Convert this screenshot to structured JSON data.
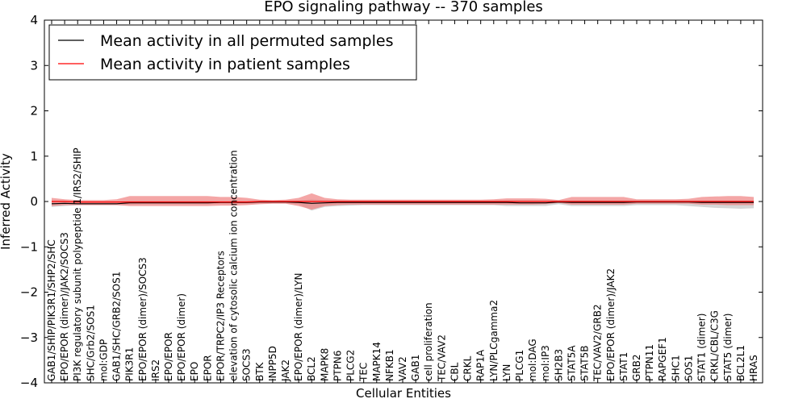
{
  "chart_data": {
    "type": "line",
    "title": "EPO signaling pathway -- 370 samples",
    "xlabel": "Cellular Entities",
    "ylabel": "Inferred Activity",
    "ylim": [
      -4,
      4
    ],
    "yticks": [
      -4,
      -3,
      -2,
      -1,
      0,
      1,
      2,
      3,
      4
    ],
    "ytick_labels": [
      "−4",
      "−3",
      "−2",
      "−1",
      "0",
      "1",
      "2",
      "3",
      "4"
    ],
    "grid": false,
    "legend_position": "top-left",
    "categories": [
      "GAB1/SHIP/PIK3R1/SHP2/SHC",
      "EPO/EPOR (dimer)/JAK2/SOCS3",
      "PI3K regulatory subunit polypeptide 1/IRS2/SHIP",
      "SHC/Grb2/SOS1",
      "mol:GDP",
      "GAB1/SHC/GRB2/SOS1",
      "PIK3R1",
      "EPO/EPOR (dimer)/SOCS3",
      "IRS2",
      "EPO/EPOR",
      "EPO/EPOR (dimer)",
      "EPO",
      "EPOR",
      "EPOR/TRPC2/IP3 Receptors",
      "elevation of cytosolic calcium ion concentration",
      "SOCS3",
      "BTK",
      "INPP5D",
      "JAK2",
      "EPO/EPOR (dimer)/LYN",
      "BCL2",
      "MAPK8",
      "PTPN6",
      "PLCG2",
      "TEC",
      "MAPK14",
      "NFKB1",
      "VAV2",
      "GAB1",
      "cell proliferation",
      "TEC/VAV2",
      "CBL",
      "CRKL",
      "RAP1A",
      "LYN/PLCgamma2",
      "LYN",
      "PLCG1",
      "mol:DAG",
      "mol:IP3",
      "SH2B3",
      "STAT5A",
      "STAT5B",
      "TEC/VAV2/GRB2",
      "EPO/EPOR (dimer)/JAK2",
      "STAT1",
      "GRB2",
      "PTPN11",
      "RAPGEF1",
      "SHC1",
      "SOS1",
      "STAT1 (dimer)",
      "CRKL/CBL/C3G",
      "STAT5 (dimer)",
      "BCL2L1",
      "HRAS"
    ],
    "series": [
      {
        "name": "Mean activity in all permuted samples",
        "color": "#000000",
        "band_color": "#c8c8c8",
        "values": [
          -0.05,
          -0.04,
          -0.05,
          -0.05,
          -0.05,
          -0.05,
          -0.03,
          -0.03,
          -0.03,
          -0.03,
          -0.03,
          -0.03,
          -0.03,
          -0.02,
          -0.02,
          -0.02,
          -0.01,
          -0.01,
          -0.01,
          -0.02,
          -0.04,
          -0.03,
          -0.02,
          -0.02,
          -0.02,
          -0.02,
          -0.02,
          -0.02,
          -0.02,
          -0.02,
          -0.02,
          -0.02,
          -0.02,
          -0.02,
          -0.02,
          -0.02,
          -0.03,
          -0.03,
          -0.03,
          -0.01,
          -0.02,
          -0.02,
          -0.02,
          -0.02,
          -0.02,
          -0.01,
          -0.01,
          -0.01,
          -0.01,
          -0.01,
          -0.02,
          -0.02,
          -0.02,
          -0.02,
          -0.02
        ],
        "band_lower": [
          -0.12,
          -0.1,
          -0.08,
          -0.08,
          -0.08,
          -0.08,
          -0.07,
          -0.06,
          -0.06,
          -0.06,
          -0.06,
          -0.06,
          -0.06,
          -0.05,
          -0.05,
          -0.05,
          -0.04,
          -0.04,
          -0.04,
          -0.06,
          -0.2,
          -0.12,
          -0.1,
          -0.09,
          -0.08,
          -0.08,
          -0.08,
          -0.08,
          -0.08,
          -0.08,
          -0.08,
          -0.08,
          -0.08,
          -0.08,
          -0.08,
          -0.1,
          -0.1,
          -0.1,
          -0.1,
          -0.06,
          -0.1,
          -0.1,
          -0.1,
          -0.1,
          -0.1,
          -0.08,
          -0.08,
          -0.08,
          -0.08,
          -0.1,
          -0.12,
          -0.14,
          -0.15,
          -0.16,
          -0.15
        ],
        "band_upper": [
          0.02,
          0.02,
          0.0,
          0.0,
          0.0,
          0.0,
          0.02,
          0.02,
          0.02,
          0.02,
          0.02,
          0.02,
          0.02,
          0.02,
          0.02,
          0.02,
          0.02,
          0.02,
          0.02,
          0.02,
          0.05,
          0.03,
          0.02,
          0.02,
          0.02,
          0.02,
          0.02,
          0.02,
          0.02,
          0.02,
          0.02,
          0.02,
          0.02,
          0.02,
          0.02,
          0.03,
          0.03,
          0.03,
          0.03,
          0.03,
          0.03,
          0.03,
          0.03,
          0.03,
          0.03,
          0.03,
          0.03,
          0.03,
          0.03,
          0.03,
          0.03,
          0.03,
          0.03,
          0.03,
          0.03
        ]
      },
      {
        "name": "Mean activity in patient samples",
        "color": "#ff0000",
        "band_color": "#f08080",
        "values": [
          0.0,
          0.0,
          -0.01,
          -0.01,
          -0.01,
          -0.01,
          -0.01,
          -0.01,
          -0.01,
          -0.01,
          -0.01,
          -0.01,
          -0.01,
          -0.01,
          -0.01,
          -0.01,
          0.0,
          0.0,
          0.0,
          0.0,
          0.0,
          0.0,
          0.0,
          0.0,
          0.0,
          0.0,
          0.0,
          0.0,
          0.0,
          0.0,
          0.0,
          0.0,
          0.0,
          0.0,
          0.0,
          0.0,
          0.0,
          0.0,
          0.0,
          0.0,
          0.0,
          0.0,
          0.0,
          0.0,
          0.0,
          0.0,
          0.0,
          0.0,
          0.0,
          0.0,
          0.0,
          0.0,
          0.0,
          0.0,
          0.0
        ],
        "band_lower": [
          -0.1,
          -0.08,
          -0.08,
          -0.08,
          -0.08,
          -0.08,
          -0.1,
          -0.1,
          -0.1,
          -0.1,
          -0.1,
          -0.1,
          -0.1,
          -0.09,
          -0.09,
          -0.08,
          -0.06,
          -0.05,
          -0.05,
          -0.1,
          -0.18,
          -0.1,
          -0.08,
          -0.07,
          -0.07,
          -0.07,
          -0.07,
          -0.07,
          -0.07,
          -0.07,
          -0.07,
          -0.07,
          -0.07,
          -0.07,
          -0.07,
          -0.07,
          -0.07,
          -0.07,
          -0.06,
          -0.03,
          -0.07,
          -0.07,
          -0.07,
          -0.07,
          -0.07,
          -0.05,
          -0.05,
          -0.05,
          -0.05,
          -0.05,
          -0.07,
          -0.07,
          -0.08,
          -0.08,
          -0.08
        ],
        "band_upper": [
          0.08,
          0.05,
          0.03,
          0.03,
          0.03,
          0.05,
          0.12,
          0.12,
          0.12,
          0.12,
          0.12,
          0.12,
          0.12,
          0.1,
          0.1,
          0.08,
          0.04,
          0.03,
          0.04,
          0.08,
          0.18,
          0.08,
          0.05,
          0.04,
          0.04,
          0.04,
          0.04,
          0.04,
          0.04,
          0.04,
          0.04,
          0.04,
          0.04,
          0.04,
          0.05,
          0.07,
          0.07,
          0.07,
          0.06,
          0.03,
          0.1,
          0.1,
          0.1,
          0.1,
          0.1,
          0.05,
          0.05,
          0.05,
          0.05,
          0.06,
          0.1,
          0.11,
          0.12,
          0.12,
          0.1
        ]
      }
    ]
  }
}
